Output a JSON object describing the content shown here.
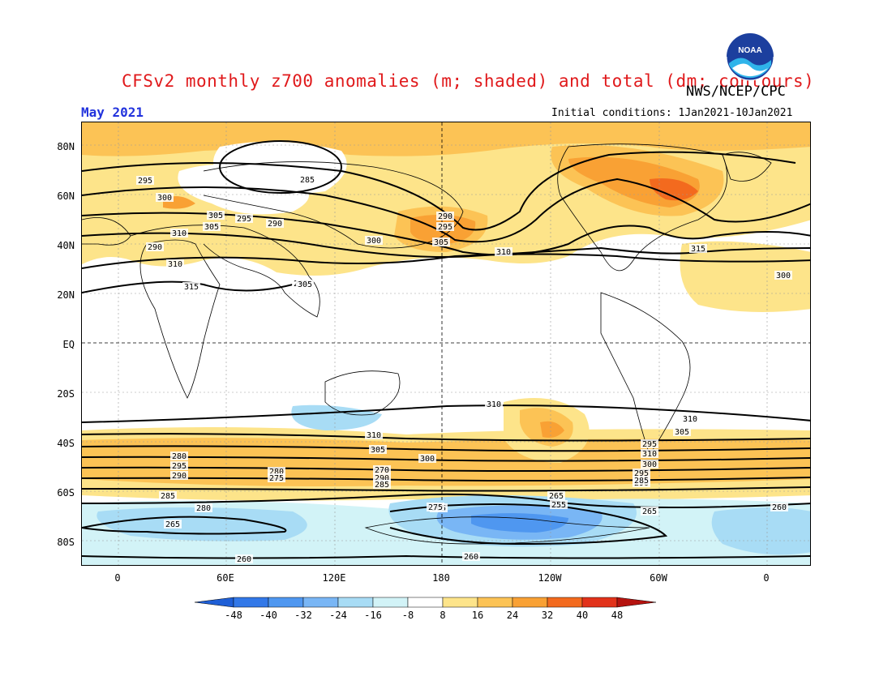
{
  "header": {
    "title": "CFSv2 monthly z700 anomalies (m; shaded) and total (dm; contours)",
    "agency": "NWS/NCEP/CPC",
    "month": "May 2021",
    "initial_conditions": "Initial conditions: 1Jan2021-10Jan2021",
    "logo_text": "NOAA"
  },
  "map": {
    "lat_labels": [
      "80N",
      "60N",
      "40N",
      "20N",
      "EQ",
      "20S",
      "40S",
      "60S",
      "80S"
    ],
    "lon_labels": [
      "0",
      "60E",
      "120E",
      "180",
      "120W",
      "60W",
      "0"
    ],
    "contour_labels": [
      "295",
      "300",
      "305",
      "310",
      "315",
      "285",
      "290",
      "295",
      "305",
      "300",
      "290",
      "295",
      "305",
      "310",
      "290",
      "295",
      "300",
      "305",
      "310",
      "315",
      "315",
      "310",
      "310",
      "310",
      "305",
      "300",
      "295",
      "305",
      "310",
      "300",
      "295",
      "290",
      "285",
      "280",
      "275",
      "270",
      "290",
      "285",
      "280",
      "295",
      "290",
      "285",
      "280",
      "265",
      "260",
      "260",
      "265",
      "265",
      "255",
      "265",
      "260",
      "275",
      "270",
      "265",
      "260",
      "260"
    ]
  },
  "colorbar": {
    "labels": [
      "-48",
      "-40",
      "-32",
      "-24",
      "-16",
      "-8",
      "8",
      "16",
      "24",
      "32",
      "40",
      "48"
    ],
    "colors": [
      "#1f5fd6",
      "#3278e8",
      "#4f97f0",
      "#79b6f5",
      "#a8dcf5",
      "#d2f3f7",
      "#ffffff",
      "#fde48a",
      "#fcc355",
      "#f9a134",
      "#f36a1e",
      "#e2321a",
      "#b5130f"
    ]
  }
}
